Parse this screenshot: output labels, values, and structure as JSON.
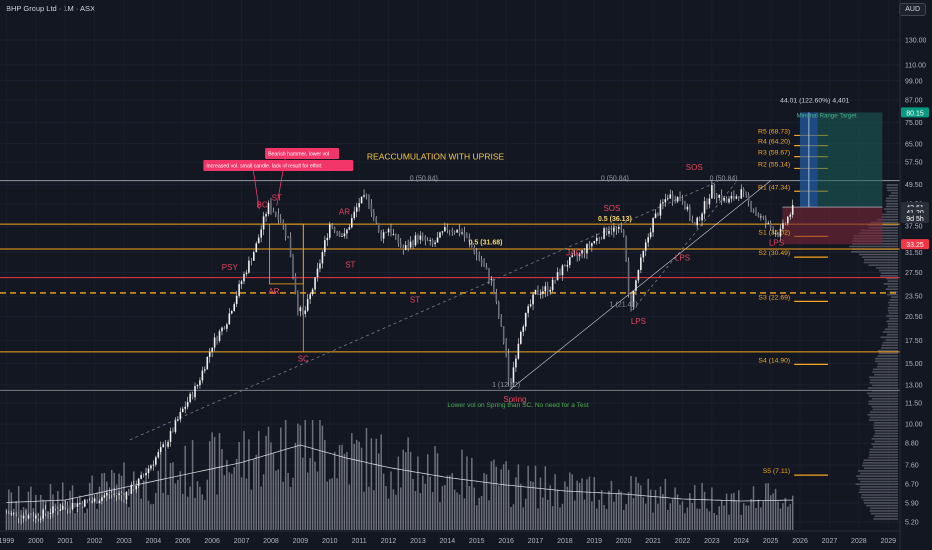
{
  "header": {
    "title": "BHP Group Ltd · 1M · ASX",
    "currency": "AUD"
  },
  "chart_data": {
    "type": "candlestick",
    "title": "REACCUMULATION WITH UPRISE",
    "y_scale": "log",
    "y_ticks": [
      130.0,
      110.0,
      99.0,
      87.0,
      75.0,
      65.0,
      57.5,
      49.5,
      43.5,
      37.5,
      31.5,
      27.5,
      23.5,
      20.5,
      17.5,
      15.0,
      13.0,
      11.5,
      10.0,
      8.8,
      7.6,
      6.7,
      5.9,
      5.2
    ],
    "y_tick_labels": [
      "130.00",
      "110.00",
      "99.00",
      "87.00",
      "75.00",
      "65.00",
      "57.50",
      "49.50",
      "43.50",
      "37.50",
      "31.50",
      "27.50",
      "23.50",
      "20.50",
      "17.50",
      "15.00",
      "13.00",
      "11.50",
      "10.00",
      "8.80",
      "7.60",
      "6.70",
      "5.90",
      "5.20"
    ],
    "x_tick_labels": [
      "1999",
      "2000",
      "2001",
      "2002",
      "2003",
      "2004",
      "2005",
      "2006",
      "2007",
      "2008",
      "2009",
      "2010",
      "2011",
      "2012",
      "2013",
      "2014",
      "2015",
      "2016",
      "2017",
      "2018",
      "2019",
      "2020",
      "2021",
      "2022",
      "2023",
      "2024",
      "2025",
      "2026",
      "2027",
      "2028",
      "2029"
    ],
    "price_path": [
      [
        1999.0,
        5.5
      ],
      [
        2000.0,
        5.4
      ],
      [
        2001.0,
        5.8
      ],
      [
        2002.0,
        6.0
      ],
      [
        2002.5,
        6.3
      ],
      [
        2003.0,
        6.2
      ],
      [
        2003.5,
        6.8
      ],
      [
        2004.0,
        7.8
      ],
      [
        2004.5,
        9.0
      ],
      [
        2005.0,
        11.0
      ],
      [
        2005.5,
        13.0
      ],
      [
        2006.0,
        17.0
      ],
      [
        2006.5,
        20.0
      ],
      [
        2007.0,
        26.0
      ],
      [
        2007.5,
        33.0
      ],
      [
        2007.9,
        43.0
      ],
      [
        2008.3,
        40.0
      ],
      [
        2008.6,
        34.0
      ],
      [
        2008.9,
        22.0
      ],
      [
        2009.1,
        20.5
      ],
      [
        2009.5,
        26.0
      ],
      [
        2010.0,
        38.0
      ],
      [
        2010.5,
        35.0
      ],
      [
        2011.0,
        44.0
      ],
      [
        2011.3,
        45.5
      ],
      [
        2011.7,
        35.0
      ],
      [
        2012.0,
        37.0
      ],
      [
        2012.5,
        32.0
      ],
      [
        2013.0,
        35.0
      ],
      [
        2013.5,
        33.0
      ],
      [
        2014.0,
        37.0
      ],
      [
        2014.5,
        36.0
      ],
      [
        2015.0,
        31.0
      ],
      [
        2015.5,
        26.0
      ],
      [
        2016.0,
        16.0
      ],
      [
        2016.1,
        12.52
      ],
      [
        2016.5,
        19.0
      ],
      [
        2017.0,
        24.0
      ],
      [
        2017.5,
        25.0
      ],
      [
        2018.0,
        29.0
      ],
      [
        2018.5,
        31.0
      ],
      [
        2019.0,
        34.0
      ],
      [
        2019.5,
        37.0
      ],
      [
        2020.0,
        36.0
      ],
      [
        2020.2,
        21.41
      ],
      [
        2020.5,
        28.0
      ],
      [
        2021.0,
        39.0
      ],
      [
        2021.5,
        46.0
      ],
      [
        2022.0,
        45.0
      ],
      [
        2022.4,
        37.0
      ],
      [
        2022.8,
        44.0
      ],
      [
        2023.0,
        48.0
      ],
      [
        2023.5,
        44.0
      ],
      [
        2024.0,
        47.0
      ],
      [
        2024.5,
        41.0
      ],
      [
        2025.0,
        37.0
      ],
      [
        2025.3,
        35.5
      ],
      [
        2025.6,
        40.0
      ],
      [
        2025.8,
        42.61
      ]
    ],
    "volume_ma": [
      [
        1999.0,
        0.55
      ],
      [
        2001.0,
        0.6
      ],
      [
        2003.0,
        0.85
      ],
      [
        2005.0,
        1.1
      ],
      [
        2007.0,
        1.35
      ],
      [
        2009.0,
        1.7
      ],
      [
        2010.5,
        1.45
      ],
      [
        2012.0,
        1.25
      ],
      [
        2014.0,
        1.05
      ],
      [
        2016.0,
        0.9
      ],
      [
        2018.0,
        0.78
      ],
      [
        2020.0,
        0.72
      ],
      [
        2022.0,
        0.62
      ],
      [
        2024.0,
        0.58
      ],
      [
        2025.8,
        0.6
      ]
    ],
    "horizontal_levels": [
      {
        "price": 50.84,
        "color": "#9598a1"
      },
      {
        "price": 38.0,
        "color": "#f7a51c"
      },
      {
        "price": 32.2,
        "color": "#f7a51c"
      },
      {
        "price": 26.6,
        "color": "#f23645"
      },
      {
        "price": 24.0,
        "color": "#f7a51c",
        "dashed": true
      },
      {
        "price": 16.2,
        "color": "#f7a51c"
      },
      {
        "price": 12.52,
        "color": "#787b86"
      }
    ],
    "pivot_levels": [
      {
        "label": "R5 (68.73)",
        "price": 68.73
      },
      {
        "label": "R4 (64.20)",
        "price": 64.2
      },
      {
        "label": "R3 (59.67)",
        "price": 59.67
      },
      {
        "label": "R2 (55.14)",
        "price": 55.14
      },
      {
        "label": "R1 (47.34)",
        "price": 47.34
      },
      {
        "label": "S1 (35.02)",
        "price": 35.02
      },
      {
        "label": "S2 (30.49)",
        "price": 30.49
      },
      {
        "label": "S3 (22.69)",
        "price": 22.69
      },
      {
        "label": "S4 (14.90)",
        "price": 14.9
      },
      {
        "label": "S5 (7.11)",
        "price": 7.11
      }
    ],
    "fib_labels": [
      {
        "label": "0 (50.84)",
        "t": 2013.2,
        "price": 50.84
      },
      {
        "label": "0 (50.84)",
        "t": 2019.7,
        "price": 50.84
      },
      {
        "label": "0 (50.84)",
        "t": 2023.4,
        "price": 50.84
      },
      {
        "label": "0.5 (31.68)",
        "t": 2015.3,
        "price": 33.2
      },
      {
        "label": "0.5 (36.13)",
        "t": 2019.7,
        "price": 38.8
      },
      {
        "label": "1 (12.52)",
        "t": 2016.0,
        "price": 12.8
      },
      {
        "label": "1 (21.41)",
        "t": 2020.0,
        "price": 21.9
      }
    ],
    "wyckoff_labels": [
      {
        "text": "PSY",
        "t": 2006.6,
        "price": 28.0
      },
      {
        "text": "BC",
        "t": 2007.7,
        "price": 42.5
      },
      {
        "text": "ST",
        "t": 2008.2,
        "price": 44.5
      },
      {
        "text": "AR",
        "t": 2008.1,
        "price": 23.8
      },
      {
        "text": "SC",
        "t": 2009.1,
        "price": 15.2
      },
      {
        "text": "AR",
        "t": 2010.5,
        "price": 40.5
      },
      {
        "text": "ST",
        "t": 2010.7,
        "price": 28.5
      },
      {
        "text": "ST",
        "t": 2012.9,
        "price": 22.5
      },
      {
        "text": "Spring",
        "t": 2016.3,
        "price": 11.6
      },
      {
        "text": "JAC",
        "t": 2018.3,
        "price": 30.8
      },
      {
        "text": "SOS",
        "t": 2019.6,
        "price": 41.5
      },
      {
        "text": "LPS",
        "t": 2020.5,
        "price": 19.5
      },
      {
        "text": "LPS",
        "t": 2022.0,
        "price": 29.8
      },
      {
        "text": "SOS",
        "t": 2022.4,
        "price": 54.5
      },
      {
        "text": "LPS",
        "t": 2025.2,
        "price": 33.0
      }
    ],
    "callouts": [
      {
        "text": "Increased vol. small candle. lack of result for effort"
      },
      {
        "text": "Bearish hammer, lower vol"
      }
    ],
    "note": "Lower vol on Spring than SC. No need for a Test",
    "target": {
      "label": "44.01 (122.60%) 4,401",
      "sub": "Minimal Range Target",
      "top": 80.15,
      "entry": 42.61,
      "stop": 33.25
    },
    "price_badges": [
      {
        "text": "80.15",
        "price": 80.15,
        "bg": "#089981"
      },
      {
        "text": "42.61",
        "price": 42.61,
        "bg": "#2a2e39"
      },
      {
        "text": "41.20",
        "price": 41.2,
        "bg": "#2a2e39"
      },
      {
        "text": "9d 5h",
        "price": 39.6,
        "bg": "#2a2e39"
      },
      {
        "text": "33.25",
        "price": 33.25,
        "bg": "#f23645"
      }
    ]
  }
}
